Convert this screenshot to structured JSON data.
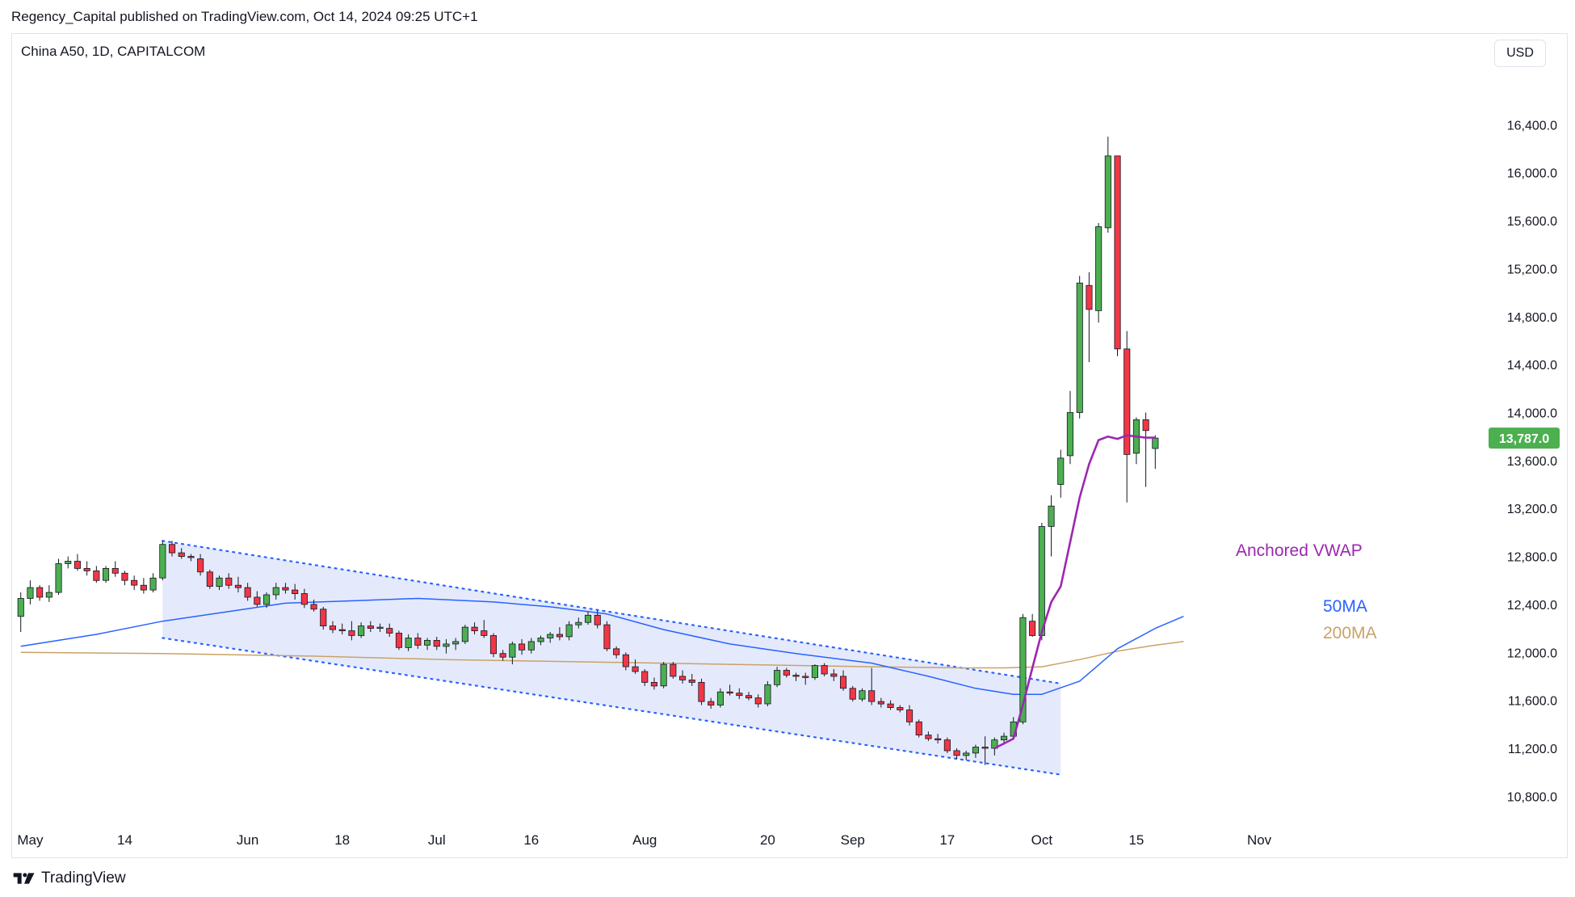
{
  "header": {
    "published_by": "Regency_Capital published on TradingView.com, Oct 14, 2024 09:25 UTC+1",
    "symbol": "China A50, 1D, CAPITALCOM",
    "currency": "USD"
  },
  "footer": {
    "brand": "TradingView"
  },
  "colors": {
    "up": "#4caf50",
    "down": "#f23645",
    "ma50": "#2962ff",
    "ma200": "#c9a265",
    "vwap": "#9c27b0",
    "channel_fill": "#dbe3fb",
    "channel_line": "#2962ff",
    "axis_text": "#131722"
  },
  "chart_data": {
    "type": "candlestick",
    "title": "China A50, 1D, CAPITALCOM",
    "ylim": [
      10600,
      16800
    ],
    "yticks": [
      10800,
      11200,
      11600,
      12000,
      12400,
      12800,
      13200,
      13600,
      14000,
      14400,
      14800,
      15200,
      15600,
      16000,
      16400
    ],
    "ytick_labels": [
      "10,800.0",
      "11,200.0",
      "11,600.0",
      "12,000.0",
      "12,400.0",
      "12,800.0",
      "13,200.0",
      "13,600.0",
      "14,000.0",
      "14,400.0",
      "14,800.0",
      "15,200.0",
      "15,600.0",
      "16,000.0",
      "16,400.0"
    ],
    "xlim": [
      -1,
      155
    ],
    "xticks": [
      {
        "label": "May",
        "x": 1
      },
      {
        "label": "14",
        "x": 11
      },
      {
        "label": "Jun",
        "x": 24
      },
      {
        "label": "18",
        "x": 34
      },
      {
        "label": "Jul",
        "x": 44
      },
      {
        "label": "16",
        "x": 54
      },
      {
        "label": "Aug",
        "x": 66
      },
      {
        "label": "20",
        "x": 79
      },
      {
        "label": "Sep",
        "x": 88
      },
      {
        "label": "17",
        "x": 98
      },
      {
        "label": "Oct",
        "x": 108
      },
      {
        "label": "15",
        "x": 118
      },
      {
        "label": "Nov",
        "x": 131
      }
    ],
    "current_price": 13787,
    "current_price_label": "13,787.0",
    "candles": [
      {
        "x": 0,
        "o": 12300,
        "h": 12500,
        "l": 12170,
        "c": 12450
      },
      {
        "x": 1,
        "o": 12450,
        "h": 12600,
        "l": 12400,
        "c": 12540
      },
      {
        "x": 2,
        "o": 12540,
        "h": 12560,
        "l": 12430,
        "c": 12460
      },
      {
        "x": 3,
        "o": 12460,
        "h": 12560,
        "l": 12420,
        "c": 12500
      },
      {
        "x": 4,
        "o": 12500,
        "h": 12780,
        "l": 12480,
        "c": 12740
      },
      {
        "x": 5,
        "o": 12740,
        "h": 12800,
        "l": 12700,
        "c": 12760
      },
      {
        "x": 6,
        "o": 12760,
        "h": 12820,
        "l": 12680,
        "c": 12700
      },
      {
        "x": 7,
        "o": 12700,
        "h": 12760,
        "l": 12640,
        "c": 12680
      },
      {
        "x": 8,
        "o": 12680,
        "h": 12720,
        "l": 12580,
        "c": 12600
      },
      {
        "x": 9,
        "o": 12600,
        "h": 12720,
        "l": 12580,
        "c": 12700
      },
      {
        "x": 10,
        "o": 12700,
        "h": 12760,
        "l": 12630,
        "c": 12660
      },
      {
        "x": 11,
        "o": 12660,
        "h": 12680,
        "l": 12560,
        "c": 12600
      },
      {
        "x": 12,
        "o": 12600,
        "h": 12640,
        "l": 12520,
        "c": 12560
      },
      {
        "x": 13,
        "o": 12560,
        "h": 12620,
        "l": 12490,
        "c": 12520
      },
      {
        "x": 14,
        "o": 12520,
        "h": 12660,
        "l": 12500,
        "c": 12620
      },
      {
        "x": 15,
        "o": 12620,
        "h": 12930,
        "l": 12600,
        "c": 12900
      },
      {
        "x": 16,
        "o": 12900,
        "h": 12930,
        "l": 12800,
        "c": 12830
      },
      {
        "x": 17,
        "o": 12830,
        "h": 12870,
        "l": 12780,
        "c": 12800
      },
      {
        "x": 18,
        "o": 12800,
        "h": 12820,
        "l": 12760,
        "c": 12790
      },
      {
        "x": 19,
        "o": 12780,
        "h": 12820,
        "l": 12640,
        "c": 12670
      },
      {
        "x": 20,
        "o": 12670,
        "h": 12690,
        "l": 12530,
        "c": 12550
      },
      {
        "x": 21,
        "o": 12550,
        "h": 12640,
        "l": 12520,
        "c": 12620
      },
      {
        "x": 22,
        "o": 12620,
        "h": 12660,
        "l": 12530,
        "c": 12560
      },
      {
        "x": 23,
        "o": 12560,
        "h": 12630,
        "l": 12500,
        "c": 12540
      },
      {
        "x": 24,
        "o": 12540,
        "h": 12580,
        "l": 12430,
        "c": 12460
      },
      {
        "x": 25,
        "o": 12460,
        "h": 12510,
        "l": 12380,
        "c": 12400
      },
      {
        "x": 26,
        "o": 12400,
        "h": 12500,
        "l": 12370,
        "c": 12480
      },
      {
        "x": 27,
        "o": 12480,
        "h": 12580,
        "l": 12440,
        "c": 12540
      },
      {
        "x": 28,
        "o": 12540,
        "h": 12580,
        "l": 12490,
        "c": 12520
      },
      {
        "x": 29,
        "o": 12520,
        "h": 12570,
        "l": 12440,
        "c": 12490
      },
      {
        "x": 30,
        "o": 12490,
        "h": 12530,
        "l": 12370,
        "c": 12400
      },
      {
        "x": 31,
        "o": 12400,
        "h": 12440,
        "l": 12340,
        "c": 12360
      },
      {
        "x": 32,
        "o": 12360,
        "h": 12380,
        "l": 12190,
        "c": 12220
      },
      {
        "x": 33,
        "o": 12220,
        "h": 12260,
        "l": 12160,
        "c": 12190
      },
      {
        "x": 34,
        "o": 12190,
        "h": 12240,
        "l": 12150,
        "c": 12180
      },
      {
        "x": 35,
        "o": 12180,
        "h": 12260,
        "l": 12100,
        "c": 12140
      },
      {
        "x": 36,
        "o": 12140,
        "h": 12250,
        "l": 12120,
        "c": 12220
      },
      {
        "x": 37,
        "o": 12220,
        "h": 12260,
        "l": 12170,
        "c": 12200
      },
      {
        "x": 38,
        "o": 12200,
        "h": 12240,
        "l": 12170,
        "c": 12210
      },
      {
        "x": 39,
        "o": 12200,
        "h": 12240,
        "l": 12130,
        "c": 12160
      },
      {
        "x": 40,
        "o": 12160,
        "h": 12180,
        "l": 12020,
        "c": 12040
      },
      {
        "x": 41,
        "o": 12040,
        "h": 12150,
        "l": 12010,
        "c": 12120
      },
      {
        "x": 42,
        "o": 12120,
        "h": 12160,
        "l": 12030,
        "c": 12060
      },
      {
        "x": 43,
        "o": 12060,
        "h": 12120,
        "l": 12020,
        "c": 12100
      },
      {
        "x": 44,
        "o": 12100,
        "h": 12130,
        "l": 12020,
        "c": 12050
      },
      {
        "x": 45,
        "o": 12050,
        "h": 12110,
        "l": 11990,
        "c": 12070
      },
      {
        "x": 46,
        "o": 12070,
        "h": 12120,
        "l": 12020,
        "c": 12090
      },
      {
        "x": 47,
        "o": 12090,
        "h": 12230,
        "l": 12070,
        "c": 12210
      },
      {
        "x": 48,
        "o": 12210,
        "h": 12250,
        "l": 12150,
        "c": 12180
      },
      {
        "x": 49,
        "o": 12180,
        "h": 12270,
        "l": 12120,
        "c": 12140
      },
      {
        "x": 50,
        "o": 12140,
        "h": 12160,
        "l": 11960,
        "c": 11990
      },
      {
        "x": 51,
        "o": 11990,
        "h": 12020,
        "l": 11930,
        "c": 11960
      },
      {
        "x": 52,
        "o": 11960,
        "h": 12090,
        "l": 11900,
        "c": 12070
      },
      {
        "x": 53,
        "o": 12070,
        "h": 12110,
        "l": 11980,
        "c": 12020
      },
      {
        "x": 54,
        "o": 12020,
        "h": 12120,
        "l": 11990,
        "c": 12090
      },
      {
        "x": 55,
        "o": 12090,
        "h": 12140,
        "l": 12060,
        "c": 12120
      },
      {
        "x": 56,
        "o": 12120,
        "h": 12170,
        "l": 12080,
        "c": 12150
      },
      {
        "x": 57,
        "o": 12150,
        "h": 12210,
        "l": 12100,
        "c": 12130
      },
      {
        "x": 58,
        "o": 12130,
        "h": 12260,
        "l": 12100,
        "c": 12230
      },
      {
        "x": 59,
        "o": 12230,
        "h": 12290,
        "l": 12200,
        "c": 12250
      },
      {
        "x": 60,
        "o": 12250,
        "h": 12340,
        "l": 12230,
        "c": 12310
      },
      {
        "x": 61,
        "o": 12310,
        "h": 12350,
        "l": 12200,
        "c": 12230
      },
      {
        "x": 62,
        "o": 12230,
        "h": 12260,
        "l": 12010,
        "c": 12030
      },
      {
        "x": 63,
        "o": 12030,
        "h": 12050,
        "l": 11950,
        "c": 11980
      },
      {
        "x": 64,
        "o": 11980,
        "h": 12000,
        "l": 11850,
        "c": 11880
      },
      {
        "x": 65,
        "o": 11880,
        "h": 11940,
        "l": 11820,
        "c": 11840
      },
      {
        "x": 66,
        "o": 11840,
        "h": 11860,
        "l": 11720,
        "c": 11750
      },
      {
        "x": 67,
        "o": 11750,
        "h": 11790,
        "l": 11690,
        "c": 11720
      },
      {
        "x": 68,
        "o": 11720,
        "h": 11920,
        "l": 11700,
        "c": 11900
      },
      {
        "x": 69,
        "o": 11900,
        "h": 11920,
        "l": 11780,
        "c": 11800
      },
      {
        "x": 70,
        "o": 11800,
        "h": 11850,
        "l": 11740,
        "c": 11770
      },
      {
        "x": 71,
        "o": 11770,
        "h": 11820,
        "l": 11720,
        "c": 11750
      },
      {
        "x": 72,
        "o": 11750,
        "h": 11780,
        "l": 11560,
        "c": 11590
      },
      {
        "x": 73,
        "o": 11590,
        "h": 11620,
        "l": 11530,
        "c": 11560
      },
      {
        "x": 74,
        "o": 11560,
        "h": 11700,
        "l": 11540,
        "c": 11670
      },
      {
        "x": 75,
        "o": 11670,
        "h": 11730,
        "l": 11640,
        "c": 11660
      },
      {
        "x": 76,
        "o": 11660,
        "h": 11700,
        "l": 11610,
        "c": 11640
      },
      {
        "x": 77,
        "o": 11640,
        "h": 11670,
        "l": 11600,
        "c": 11620
      },
      {
        "x": 78,
        "o": 11620,
        "h": 11650,
        "l": 11540,
        "c": 11570
      },
      {
        "x": 79,
        "o": 11570,
        "h": 11760,
        "l": 11550,
        "c": 11730
      },
      {
        "x": 80,
        "o": 11730,
        "h": 11880,
        "l": 11710,
        "c": 11850
      },
      {
        "x": 81,
        "o": 11850,
        "h": 11870,
        "l": 11790,
        "c": 11810
      },
      {
        "x": 82,
        "o": 11810,
        "h": 11830,
        "l": 11760,
        "c": 11800
      },
      {
        "x": 83,
        "o": 11800,
        "h": 11830,
        "l": 11730,
        "c": 11790
      },
      {
        "x": 84,
        "o": 11790,
        "h": 11900,
        "l": 11770,
        "c": 11890
      },
      {
        "x": 85,
        "o": 11890,
        "h": 11910,
        "l": 11800,
        "c": 11820
      },
      {
        "x": 86,
        "o": 11820,
        "h": 11860,
        "l": 11760,
        "c": 11800
      },
      {
        "x": 87,
        "o": 11800,
        "h": 11850,
        "l": 11680,
        "c": 11700
      },
      {
        "x": 88,
        "o": 11700,
        "h": 11720,
        "l": 11590,
        "c": 11610
      },
      {
        "x": 89,
        "o": 11610,
        "h": 11700,
        "l": 11590,
        "c": 11680
      },
      {
        "x": 90,
        "o": 11680,
        "h": 11870,
        "l": 11560,
        "c": 11590
      },
      {
        "x": 91,
        "o": 11590,
        "h": 11620,
        "l": 11540,
        "c": 11570
      },
      {
        "x": 92,
        "o": 11570,
        "h": 11600,
        "l": 11520,
        "c": 11540
      },
      {
        "x": 93,
        "o": 11540,
        "h": 11560,
        "l": 11500,
        "c": 11520
      },
      {
        "x": 94,
        "o": 11520,
        "h": 11560,
        "l": 11390,
        "c": 11420
      },
      {
        "x": 95,
        "o": 11420,
        "h": 11440,
        "l": 11290,
        "c": 11310
      },
      {
        "x": 96,
        "o": 11310,
        "h": 11340,
        "l": 11260,
        "c": 11280
      },
      {
        "x": 97,
        "o": 11280,
        "h": 11320,
        "l": 11240,
        "c": 11270
      },
      {
        "x": 98,
        "o": 11270,
        "h": 11290,
        "l": 11160,
        "c": 11180
      },
      {
        "x": 99,
        "o": 11180,
        "h": 11200,
        "l": 11110,
        "c": 11140
      },
      {
        "x": 100,
        "o": 11140,
        "h": 11180,
        "l": 11100,
        "c": 11160
      },
      {
        "x": 101,
        "o": 11160,
        "h": 11230,
        "l": 11120,
        "c": 11210
      },
      {
        "x": 102,
        "o": 11210,
        "h": 11300,
        "l": 11060,
        "c": 11200
      },
      {
        "x": 103,
        "o": 11200,
        "h": 11290,
        "l": 11140,
        "c": 11270
      },
      {
        "x": 104,
        "o": 11270,
        "h": 11330,
        "l": 11230,
        "c": 11300
      },
      {
        "x": 105,
        "o": 11300,
        "h": 11460,
        "l": 11280,
        "c": 11420
      },
      {
        "x": 106,
        "o": 11420,
        "h": 12320,
        "l": 11400,
        "c": 12290
      },
      {
        "x": 107,
        "o": 12260,
        "h": 12320,
        "l": 12130,
        "c": 12140
      },
      {
        "x": 108,
        "o": 12140,
        "h": 13080,
        "l": 12100,
        "c": 13050
      },
      {
        "x": 109,
        "o": 13050,
        "h": 13310,
        "l": 12800,
        "c": 13220
      },
      {
        "x": 110,
        "o": 13400,
        "h": 13690,
        "l": 13290,
        "c": 13620
      },
      {
        "x": 111,
        "o": 13640,
        "h": 14180,
        "l": 13570,
        "c": 14000
      },
      {
        "x": 112,
        "o": 14000,
        "h": 15140,
        "l": 13950,
        "c": 15080
      },
      {
        "x": 113,
        "o": 15060,
        "h": 15170,
        "l": 14420,
        "c": 14860
      },
      {
        "x": 114,
        "o": 14850,
        "h": 15580,
        "l": 14750,
        "c": 15550
      },
      {
        "x": 115,
        "o": 15540,
        "h": 16300,
        "l": 15500,
        "c": 16140
      },
      {
        "x": 116,
        "o": 16140,
        "h": 16140,
        "l": 14470,
        "c": 14530
      },
      {
        "x": 117,
        "o": 14530,
        "h": 14680,
        "l": 13250,
        "c": 13650
      },
      {
        "x": 118,
        "o": 13660,
        "h": 13960,
        "l": 13570,
        "c": 13940
      },
      {
        "x": 119,
        "o": 13940,
        "h": 14000,
        "l": 13380,
        "c": 13850
      },
      {
        "x": 120,
        "o": 13700,
        "h": 13810,
        "l": 13530,
        "c": 13787
      }
    ],
    "series": [
      {
        "name": "50MA",
        "color": "#2962ff",
        "points": [
          [
            0,
            12050
          ],
          [
            8,
            12150
          ],
          [
            15,
            12260
          ],
          [
            22,
            12340
          ],
          [
            28,
            12410
          ],
          [
            35,
            12430
          ],
          [
            42,
            12450
          ],
          [
            50,
            12420
          ],
          [
            56,
            12380
          ],
          [
            62,
            12320
          ],
          [
            68,
            12190
          ],
          [
            75,
            12070
          ],
          [
            82,
            11990
          ],
          [
            90,
            11910
          ],
          [
            96,
            11800
          ],
          [
            101,
            11700
          ],
          [
            105,
            11650
          ],
          [
            108,
            11650
          ],
          [
            112,
            11760
          ],
          [
            116,
            12030
          ],
          [
            120,
            12200
          ],
          [
            123,
            12300
          ]
        ]
      },
      {
        "name": "200MA",
        "color": "#c9a265",
        "points": [
          [
            0,
            12000
          ],
          [
            15,
            11990
          ],
          [
            30,
            11970
          ],
          [
            45,
            11940
          ],
          [
            60,
            11920
          ],
          [
            75,
            11900
          ],
          [
            90,
            11880
          ],
          [
            100,
            11870
          ],
          [
            104,
            11870
          ],
          [
            108,
            11880
          ],
          [
            112,
            11940
          ],
          [
            116,
            12010
          ],
          [
            120,
            12060
          ],
          [
            123,
            12090
          ]
        ]
      },
      {
        "name": "Anchored VWAP",
        "color": "#9c27b0",
        "points": [
          [
            103,
            11200
          ],
          [
            105,
            11280
          ],
          [
            106,
            11560
          ],
          [
            107,
            11870
          ],
          [
            108,
            12170
          ],
          [
            109,
            12420
          ],
          [
            110,
            12550
          ],
          [
            111,
            12920
          ],
          [
            112,
            13290
          ],
          [
            113,
            13570
          ],
          [
            114,
            13770
          ],
          [
            115,
            13800
          ],
          [
            116,
            13780
          ],
          [
            117,
            13810
          ],
          [
            118,
            13800
          ],
          [
            119,
            13790
          ],
          [
            120,
            13790
          ]
        ]
      }
    ],
    "channel": {
      "upper": [
        [
          15,
          12930
        ],
        [
          110,
          11740
        ]
      ],
      "lower": [
        [
          15,
          12120
        ],
        [
          110,
          10980
        ]
      ]
    },
    "annotations": [
      {
        "text": "Anchored VWAP",
        "color": "#9c27b0"
      },
      {
        "text": "50MA",
        "color": "#2962ff"
      },
      {
        "text": "200MA",
        "color": "#c9a265"
      }
    ]
  }
}
